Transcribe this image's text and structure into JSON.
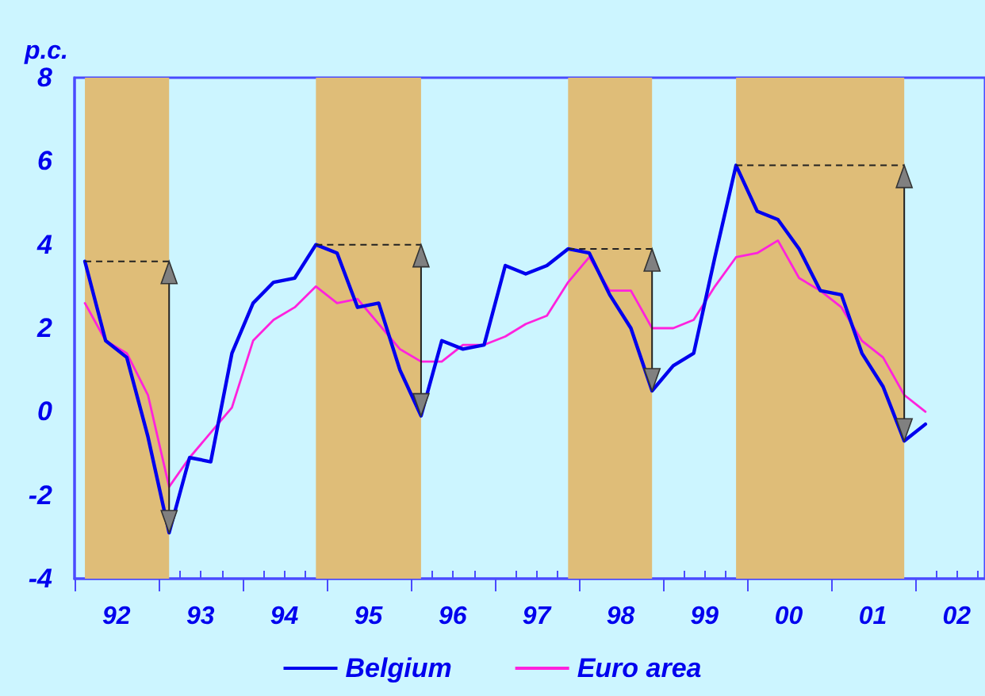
{
  "chart_data": {
    "type": "line",
    "ylabel": "p.c.",
    "x": [
      "1992-02-15",
      "1992-05-15",
      "1992-08-15",
      "1992-11-15",
      "1993-02-15",
      "1993-05-15",
      "1993-08-15",
      "1993-11-15",
      "1994-02-15",
      "1994-05-15",
      "1994-08-15",
      "1994-11-15",
      "1995-02-15",
      "1995-05-15",
      "1995-08-15",
      "1995-11-15",
      "1996-02-15",
      "1996-05-15",
      "1996-08-15",
      "1996-11-15",
      "1997-02-15",
      "1997-05-15",
      "1997-08-15",
      "1997-11-15",
      "1998-02-15",
      "1998-05-15",
      "1998-08-15",
      "1998-11-15",
      "1999-02-15",
      "1999-05-15",
      "1999-08-15",
      "1999-11-15",
      "2000-02-15",
      "2000-05-15",
      "2000-08-15",
      "2000-11-15",
      "2001-02-15",
      "2001-05-15",
      "2001-08-15",
      "2001-11-15",
      "2002-02-15"
    ],
    "series": [
      {
        "name": "Belgium",
        "color": "#0000ee",
        "values": [
          3.6,
          1.7,
          1.3,
          -0.6,
          -2.9,
          -1.1,
          -1.2,
          1.4,
          2.6,
          3.1,
          3.2,
          4.0,
          3.8,
          2.5,
          2.6,
          1.0,
          -0.1,
          1.7,
          1.5,
          1.6,
          3.5,
          3.3,
          3.5,
          3.9,
          3.8,
          2.8,
          2.0,
          0.5,
          1.1,
          1.4,
          3.7,
          5.9,
          4.8,
          4.6,
          3.9,
          2.9,
          2.8,
          1.4,
          0.6,
          -0.7,
          -0.3
        ]
      },
      {
        "name": "Euro area",
        "color": "#ff22dd",
        "values": [
          2.6,
          1.7,
          1.4,
          0.4,
          -1.8,
          -1.1,
          -0.5,
          0.1,
          1.7,
          2.2,
          2.5,
          3.0,
          2.6,
          2.7,
          2.1,
          1.5,
          1.2,
          1.2,
          1.6,
          1.6,
          1.8,
          2.1,
          2.3,
          3.1,
          3.7,
          2.9,
          2.9,
          2.0,
          2.0,
          2.2,
          3.0,
          3.7,
          3.8,
          4.1,
          3.2,
          2.9,
          2.5,
          1.7,
          1.3,
          0.4,
          0.0
        ]
      }
    ],
    "xlim": [
      "1992-01-01",
      "2002-11-01"
    ],
    "xticks": [
      {
        "value": "1992-01-01",
        "label": null
      },
      {
        "value": "1992-07-01",
        "label": "92"
      },
      {
        "value": "1993-01-01",
        "label": null
      },
      {
        "value": "1993-07-01",
        "label": "93"
      },
      {
        "value": "1994-01-01",
        "label": null
      },
      {
        "value": "1994-07-01",
        "label": "94"
      },
      {
        "value": "1995-01-01",
        "label": null
      },
      {
        "value": "1995-07-01",
        "label": "95"
      },
      {
        "value": "1996-01-01",
        "label": null
      },
      {
        "value": "1996-07-01",
        "label": "96"
      },
      {
        "value": "1997-01-01",
        "label": null
      },
      {
        "value": "1997-07-01",
        "label": "97"
      },
      {
        "value": "1998-01-01",
        "label": null
      },
      {
        "value": "1998-07-01",
        "label": "98"
      },
      {
        "value": "1999-01-01",
        "label": null
      },
      {
        "value": "1999-07-01",
        "label": "99"
      },
      {
        "value": "2000-01-01",
        "label": null
      },
      {
        "value": "2000-07-01",
        "label": "00"
      },
      {
        "value": "2001-01-01",
        "label": null
      },
      {
        "value": "2001-07-01",
        "label": "01"
      },
      {
        "value": "2002-01-01",
        "label": null
      },
      {
        "value": "2002-07-01",
        "label": "02"
      }
    ],
    "ylim": [
      -4,
      8
    ],
    "yticks": [
      -4,
      -2,
      0,
      2,
      4,
      6,
      8
    ],
    "bands": [
      {
        "axis": "x",
        "from": "1992-02-15",
        "to": "1993-02-15",
        "color": "#dfbd78"
      },
      {
        "axis": "x",
        "from": "1994-11-15",
        "to": "1996-02-15",
        "color": "#dfbd78"
      },
      {
        "axis": "x",
        "from": "1997-11-15",
        "to": "1998-11-15",
        "color": "#dfbd78"
      },
      {
        "axis": "x",
        "from": "1999-11-15",
        "to": "2001-11-15",
        "color": "#dfbd78"
      }
    ],
    "grid": false,
    "legend": "bottom",
    "marker": "none",
    "line_style": "solid"
  }
}
